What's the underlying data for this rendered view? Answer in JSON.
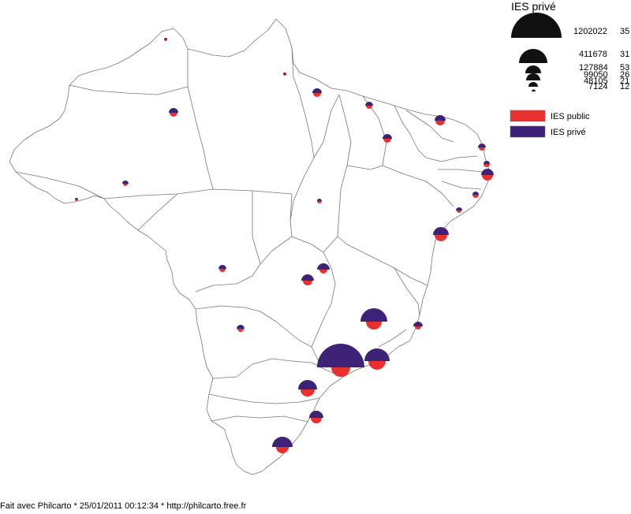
{
  "legend": {
    "title": "IES privé",
    "size_classes": [
      {
        "value": "1202022",
        "count": "35"
      },
      {
        "value": "411678",
        "count": "31"
      },
      {
        "value": "127884",
        "count": "53"
      },
      {
        "value": "99050",
        "count": "26"
      },
      {
        "value": "48105",
        "count": "21"
      },
      {
        "value": "7124",
        "count": "12"
      }
    ],
    "categories": [
      {
        "label": "IES public",
        "color": "#e8312f"
      },
      {
        "label": "IES privé",
        "color": "#3d2277"
      }
    ]
  },
  "footer": "Fait avec Philcarto * 25/01/2011 00:12:34 * http://philcarto.free.fr"
}
